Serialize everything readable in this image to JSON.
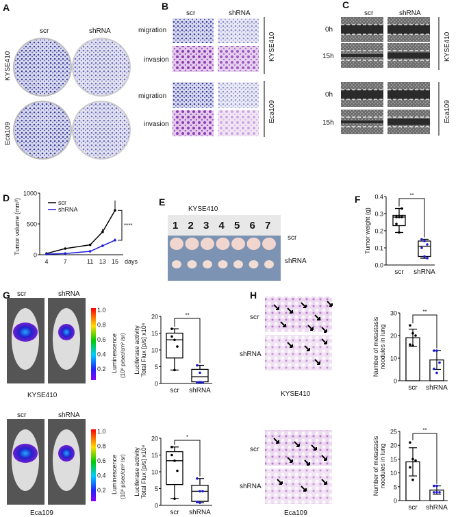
{
  "panels": {
    "A": {
      "label": "A",
      "cols": [
        "scr",
        "shRNA"
      ],
      "rows": [
        "KYSE410",
        "Eca109"
      ]
    },
    "B": {
      "label": "B",
      "cols": [
        "scr",
        "shRNA"
      ],
      "rows": [
        "migration",
        "invasion",
        "migration",
        "invasion"
      ],
      "groups": [
        "KYSE410",
        "Eca109"
      ]
    },
    "C": {
      "label": "C",
      "cols": [
        "scr",
        "shRNA"
      ],
      "rows": [
        "0h",
        "15h",
        "0h",
        "15h"
      ],
      "groups": [
        "KYSE410",
        "Eca109"
      ]
    },
    "D": {
      "label": "D"
    },
    "E": {
      "label": "E",
      "title": "KYSE410",
      "ruler_numbers": [
        "1",
        "2",
        "3",
        "4",
        "5",
        "6",
        "7"
      ],
      "rows": [
        "scr",
        "shRNA"
      ]
    },
    "F": {
      "label": "F"
    },
    "G": {
      "label": "G",
      "cols": [
        "scr",
        "shRNA"
      ],
      "cell_lines": [
        "KYSE410",
        "Eca109"
      ],
      "colorbar": {
        "ticks": [
          "1.0",
          "0.8",
          "0.6",
          "0.4",
          "0.2"
        ],
        "label1": "Luminescence",
        "label2": "(10⁸ p/sec/cm² /sr)"
      }
    },
    "H": {
      "label": "H",
      "rows": [
        "scr",
        "shRNA"
      ],
      "cell_lines": [
        "KYSE410",
        "Eca109"
      ]
    }
  },
  "colors": {
    "scr": "#000000",
    "shRNA": "#1a1adb",
    "crystal_violet": "#4b4fa8",
    "he_stain": "#c99ad6"
  },
  "chart_data": [
    {
      "id": "D",
      "type": "line",
      "x": [
        4,
        7,
        11,
        13,
        15
      ],
      "xlabel": "days",
      "ylabel": "Tumor volume (mm³)",
      "ylim": [
        0,
        1000
      ],
      "yticks": [
        0,
        500,
        1000
      ],
      "series": [
        {
          "name": "scr",
          "values": [
            20,
            100,
            160,
            370,
            720
          ],
          "err": [
            5,
            10,
            15,
            50,
            160
          ]
        },
        {
          "name": "shRNA",
          "values": [
            10,
            20,
            55,
            145,
            235
          ],
          "err": [
            3,
            5,
            8,
            20,
            30
          ]
        }
      ],
      "significance": "****",
      "legend": "top-left"
    },
    {
      "id": "F",
      "type": "box",
      "categories": [
        "scr",
        "shRNA"
      ],
      "ylabel": "Tumor weight (g)",
      "ylim": [
        0,
        0.4
      ],
      "yticks": [
        "0.0",
        "0.1",
        "0.2",
        "0.3",
        "0.4"
      ],
      "boxes": [
        {
          "min": 0.19,
          "q1": 0.23,
          "median": 0.28,
          "q3": 0.29,
          "max": 0.33,
          "points": [
            0.28,
            0.28,
            0.28,
            0.24,
            0.19,
            0.33
          ]
        },
        {
          "min": 0.04,
          "q1": 0.05,
          "median": 0.11,
          "q3": 0.14,
          "max": 0.15,
          "points": [
            0.15,
            0.14,
            0.12,
            0.1,
            0.05,
            0.04
          ]
        }
      ],
      "significance": "**"
    },
    {
      "id": "G1",
      "type": "box",
      "categories": [
        "scr",
        "shRNA"
      ],
      "ylabel": "Luciferase activity",
      "ylabel2": "Total Flux [p/s] x10⁸",
      "ylim": [
        0,
        20
      ],
      "yticks": [
        "0",
        "5",
        "10",
        "15",
        "20"
      ],
      "boxes": [
        {
          "min": 4,
          "q1": 7.6,
          "median": 13,
          "q3": 15,
          "max": 16.3,
          "points": [
            14,
            13,
            11,
            16.3,
            4
          ]
        },
        {
          "min": 0.2,
          "q1": 0.5,
          "median": 2,
          "q3": 4.2,
          "max": 5.4,
          "points": [
            5.4,
            3.2,
            0.3,
            0.3,
            0.4
          ]
        }
      ],
      "significance": "**"
    },
    {
      "id": "G2",
      "type": "box",
      "categories": [
        "scr",
        "shRNA"
      ],
      "ylabel": "Luciferase activity",
      "ylabel2": "Total Flux [p/s] x10⁸",
      "ylim": [
        0,
        20
      ],
      "yticks": [
        "0",
        "5",
        "10",
        "15",
        "20"
      ],
      "boxes": [
        {
          "min": 2,
          "q1": 6.2,
          "median": 13.3,
          "q3": 16,
          "max": 17.4,
          "points": [
            15,
            13.3,
            10.3,
            17.4,
            2
          ]
        },
        {
          "min": 0.8,
          "q1": 1.2,
          "median": 4.2,
          "q3": 6,
          "max": 8,
          "points": [
            8,
            4.2,
            4.2,
            1,
            0.8
          ]
        }
      ],
      "significance": "*"
    },
    {
      "id": "H1",
      "type": "bar",
      "categories": [
        "scr",
        "shRNA"
      ],
      "ylabel": "Number of metastasis",
      "ylabel2": "noodules in lung",
      "ylim": [
        0,
        30
      ],
      "yticks": [
        "0",
        "10",
        "20",
        "30"
      ],
      "values": [
        19,
        9.2
      ],
      "sd": [
        3.8,
        4.2
      ],
      "points": [
        [
          24.5,
          21,
          20,
          16,
          15.5
        ],
        [
          13.3,
          13.3,
          8,
          5.3,
          3.5
        ]
      ],
      "significance": "**"
    },
    {
      "id": "H2",
      "type": "bar",
      "categories": [
        "scr",
        "shRNA"
      ],
      "ylabel": "Number of metastasis",
      "ylabel2": "noodules in lung",
      "ylim": [
        0,
        25
      ],
      "yticks": [
        "0",
        "5",
        "10",
        "15",
        "20",
        "25"
      ],
      "values": [
        14,
        3.8
      ],
      "sd": [
        5.1,
        1.5
      ],
      "points": [
        [
          21,
          15,
          14.5,
          12,
          7.5
        ],
        [
          5.3,
          5.3,
          3,
          3,
          3
        ]
      ],
      "significance": "**"
    }
  ]
}
